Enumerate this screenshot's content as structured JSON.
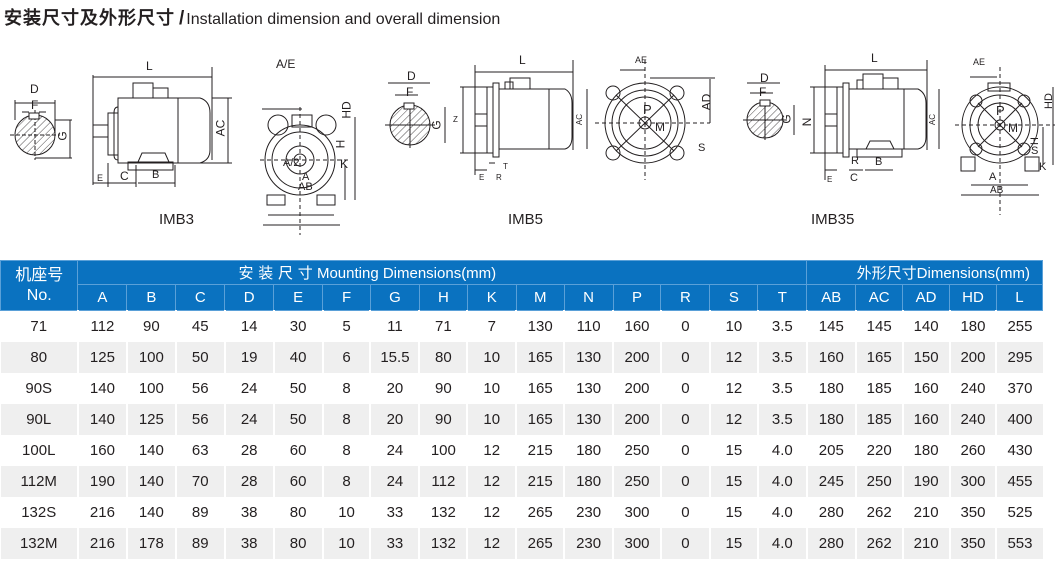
{
  "header": {
    "title_zh": "安装尺寸及外形尺寸",
    "separator": "/",
    "title_en": "Installation dimension and overall dimension"
  },
  "diagrams": [
    {
      "name": "IMB3",
      "label": "IMB3",
      "shaft_labels": [
        "D",
        "F",
        "G"
      ],
      "side_labels": [
        "L",
        "AC",
        "E",
        "C",
        "B"
      ],
      "front_labels": [
        "A/E",
        "HD",
        "H",
        "A/2",
        "A",
        "AB",
        "K"
      ]
    },
    {
      "name": "IMB5",
      "label": "IMB5",
      "shaft_labels": [
        "D",
        "F",
        "G"
      ],
      "side_labels": [
        "L",
        "Z",
        "AC",
        "E",
        "T",
        "R"
      ],
      "front_labels": [
        "AE",
        "AD",
        "P",
        "M",
        "S"
      ]
    },
    {
      "name": "IMB35",
      "label": "IMB35",
      "shaft_labels": [
        "D",
        "F",
        "G"
      ],
      "side_labels": [
        "L",
        "N",
        "AC",
        "E",
        "R",
        "C",
        "B"
      ],
      "front_labels": [
        "AE",
        "HD",
        "P",
        "M",
        "H",
        "S",
        "A",
        "AB",
        "K"
      ]
    }
  ],
  "table": {
    "no_header_zh": "机座号",
    "no_header_en": "No.",
    "mounting_group_zh": "安 装 尺 寸",
    "mounting_group_en": "Mounting Dimensions(mm)",
    "overall_group_zh": "外形尺寸",
    "overall_group_en": "Dimensions(mm)",
    "mounting_columns": [
      "A",
      "B",
      "C",
      "D",
      "E",
      "F",
      "G",
      "H",
      "K",
      "M",
      "N",
      "P",
      "R",
      "S",
      "T"
    ],
    "overall_columns": [
      "AB",
      "AC",
      "AD",
      "HD",
      "L"
    ],
    "rows": [
      {
        "no": "71",
        "values": [
          "112",
          "90",
          "45",
          "14",
          "30",
          "5",
          "11",
          "71",
          "7",
          "130",
          "110",
          "160",
          "0",
          "10",
          "3.5",
          "145",
          "145",
          "140",
          "180",
          "255"
        ]
      },
      {
        "no": "80",
        "values": [
          "125",
          "100",
          "50",
          "19",
          "40",
          "6",
          "15.5",
          "80",
          "10",
          "165",
          "130",
          "200",
          "0",
          "12",
          "3.5",
          "160",
          "165",
          "150",
          "200",
          "295"
        ]
      },
      {
        "no": "90S",
        "values": [
          "140",
          "100",
          "56",
          "24",
          "50",
          "8",
          "20",
          "90",
          "10",
          "165",
          "130",
          "200",
          "0",
          "12",
          "3.5",
          "180",
          "185",
          "160",
          "240",
          "370"
        ]
      },
      {
        "no": "90L",
        "values": [
          "140",
          "125",
          "56",
          "24",
          "50",
          "8",
          "20",
          "90",
          "10",
          "165",
          "130",
          "200",
          "0",
          "12",
          "3.5",
          "180",
          "185",
          "160",
          "240",
          "400"
        ]
      },
      {
        "no": "100L",
        "values": [
          "160",
          "140",
          "63",
          "28",
          "60",
          "8",
          "24",
          "100",
          "12",
          "215",
          "180",
          "250",
          "0",
          "15",
          "4.0",
          "205",
          "220",
          "180",
          "260",
          "430"
        ]
      },
      {
        "no": "112M",
        "values": [
          "190",
          "140",
          "70",
          "28",
          "60",
          "8",
          "24",
          "112",
          "12",
          "215",
          "180",
          "250",
          "0",
          "15",
          "4.0",
          "245",
          "250",
          "190",
          "300",
          "455"
        ]
      },
      {
        "no": "132S",
        "values": [
          "216",
          "140",
          "89",
          "38",
          "80",
          "10",
          "33",
          "132",
          "12",
          "265",
          "230",
          "300",
          "0",
          "15",
          "4.0",
          "280",
          "262",
          "210",
          "350",
          "525"
        ]
      },
      {
        "no": "132M",
        "values": [
          "216",
          "178",
          "89",
          "38",
          "80",
          "10",
          "33",
          "132",
          "12",
          "265",
          "230",
          "300",
          "0",
          "15",
          "4.0",
          "280",
          "262",
          "210",
          "350",
          "553"
        ]
      }
    ]
  },
  "colors": {
    "header_blue": "#0a72c0",
    "row_alt_gray": "#efefef",
    "text": "#231f20"
  }
}
